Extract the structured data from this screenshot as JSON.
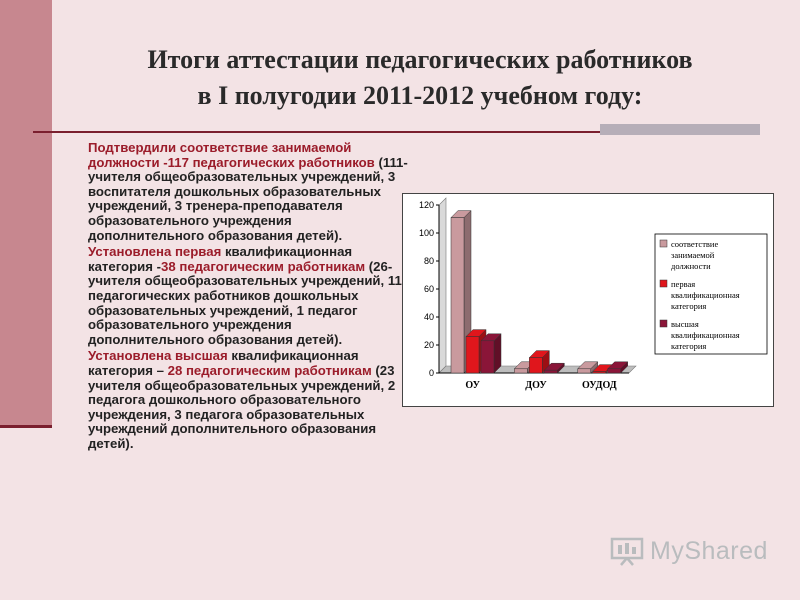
{
  "title": {
    "line1": "Итоги аттестации педагогических работников",
    "line2": "в I полугодии 2011-2012 учебном году:"
  },
  "paragraphs": [
    {
      "segments": [
        {
          "text": "Подтвердили соответствие занимаемой должности -117 педагогических работников",
          "hl": true
        },
        {
          "text": " (111- учителя общеобразовательных учреждений, 3 воспитателя дошкольных образовательных учреждений, 3 тренера-преподавателя образовательного учреждения дополнительного образования детей).",
          "hl": false
        }
      ]
    },
    {
      "segments": [
        {
          "text": "Установлена первая",
          "hl": true
        },
        {
          "text": " квалификационная категория -",
          "hl": false
        },
        {
          "text": "38 педагогическим работникам",
          "hl": true
        },
        {
          "text": " (26- учителя общеобразовательных учреждений, 11 педагогических работников дошкольных образовательных учреждений, 1 педагог образовательного учреждения дополнительного образования детей).",
          "hl": false
        }
      ]
    },
    {
      "segments": [
        {
          "text": "Установлена высшая",
          "hl": true
        },
        {
          "text": " квалификационная категория – ",
          "hl": false
        },
        {
          "text": "28 педагогическим работникам",
          "hl": true
        },
        {
          "text": " (23 учителя общеобразовательных учреждений, 2 педагога дошкольного образовательного учреждения, 3 педагога образовательных учреждений дополнительного образования детей).",
          "hl": false
        }
      ]
    }
  ],
  "chart_data": {
    "type": "bar",
    "categories": [
      "ОУ",
      "ДОУ",
      "ОУДОД"
    ],
    "series": [
      {
        "name": "соответствие занимаемой должности",
        "values": [
          111,
          3,
          3
        ],
        "color": "#c99a9e"
      },
      {
        "name": "первая квалификационная категория",
        "values": [
          26,
          11,
          1
        ],
        "color": "#e0161c"
      },
      {
        "name": "высшая квалификационная категория",
        "values": [
          23,
          2,
          3
        ],
        "color": "#8a1538"
      }
    ],
    "ylim": [
      0,
      120
    ],
    "yticks": [
      0,
      20,
      40,
      60,
      80,
      100,
      120
    ],
    "style": "3d",
    "grid": false,
    "legend": "right"
  },
  "watermark": {
    "text": "MyShared"
  },
  "colors": {
    "background": "#f3e3e5",
    "accent_bar": "#c7878f",
    "rule": "#7a1f2e",
    "highlight": "#9b1c2a"
  }
}
